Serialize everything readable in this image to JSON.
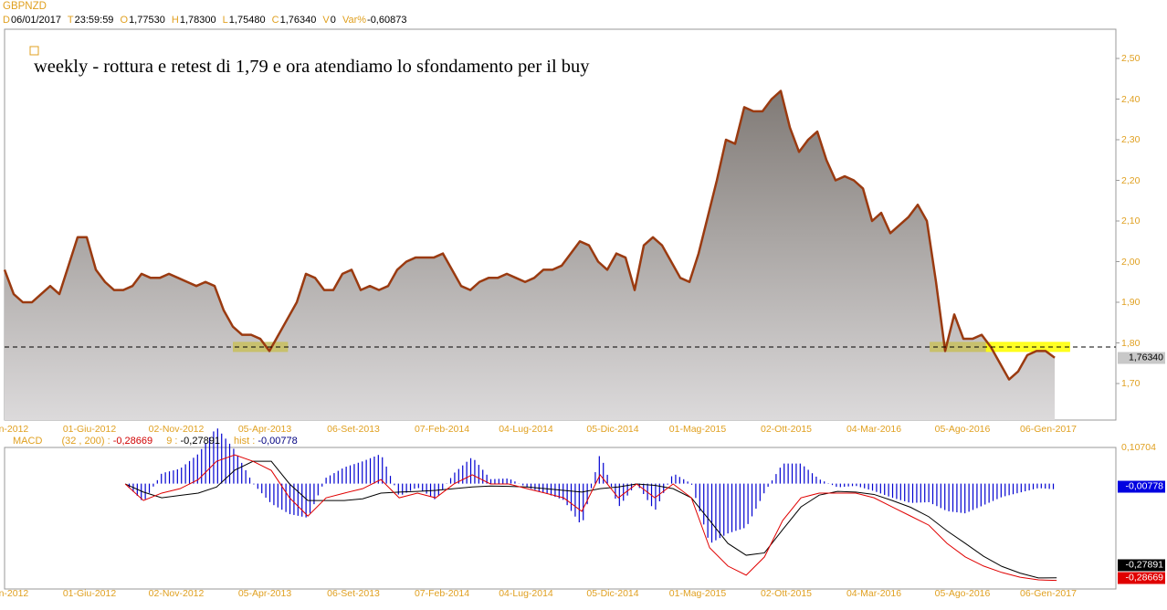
{
  "header": {
    "symbol": "GBPNZD",
    "date_key": "D",
    "date": "06/01/2017",
    "time_key": "T",
    "time": "23:59:59",
    "open_key": "O",
    "open": "1,77530",
    "high_key": "H",
    "high": "1,78300",
    "low_key": "L",
    "low": "1,75480",
    "close_key": "C",
    "close": "1,76340",
    "volume_key": "V",
    "volume": "0",
    "var_key": "Var%",
    "var": "-0,60873"
  },
  "annotation": "weekly - rottura e retest di 1,79 e ora atendiamo lo sfondamento per il buy",
  "x_labels": [
    "en-2012",
    "01-Giu-2012",
    "02-Nov-2012",
    "05-Apr-2013",
    "06-Set-2013",
    "07-Feb-2014",
    "04-Lug-2014",
    "05-Dic-2014",
    "01-Mag-2015",
    "02-Ott-2015",
    "04-Mar-2016",
    "05-Ago-2016",
    "06-Gen-2017"
  ],
  "macd_legend": {
    "name": "MACD",
    "params": "(32 , 200) :",
    "macd_value": "-0,28669",
    "signal_key": "9 :",
    "signal_value": "-0,27891",
    "hist_key": "hist :",
    "hist_value": "-0,00778"
  },
  "macd_scale": {
    "top": "0,10704",
    "hist_box": "-0,00778",
    "signal_box": "-0,27891",
    "macd_box": "-0,28669"
  },
  "colors": {
    "price_line": "#9a3a10",
    "level_line": "#000000",
    "highlight": "#ffff00",
    "macd": "#e00000",
    "signal": "#000000",
    "hist": "#0000d0",
    "axis_text": "#e0a020"
  },
  "chart_data": [
    {
      "type": "area",
      "title": "GBPNZD weekly",
      "y_ticks": [
        "2,50",
        "2,40",
        "2,30",
        "2,20",
        "2,10",
        "2,00",
        "1,90",
        "1,80",
        "1,70"
      ],
      "ylim": [
        1.61,
        2.57
      ],
      "x_range_years": [
        2012.0,
        2017.05
      ],
      "x_start_year": 2012.0,
      "x_step_years": 0.0439,
      "close": [
        1.98,
        1.92,
        1.9,
        1.9,
        1.92,
        1.94,
        1.92,
        1.99,
        2.06,
        2.06,
        1.98,
        1.95,
        1.93,
        1.93,
        1.94,
        1.97,
        1.96,
        1.96,
        1.97,
        1.96,
        1.95,
        1.94,
        1.95,
        1.94,
        1.88,
        1.84,
        1.82,
        1.82,
        1.81,
        1.78,
        1.82,
        1.86,
        1.9,
        1.97,
        1.96,
        1.93,
        1.93,
        1.97,
        1.98,
        1.93,
        1.94,
        1.93,
        1.94,
        1.98,
        2.0,
        2.01,
        2.01,
        2.01,
        2.02,
        1.98,
        1.94,
        1.93,
        1.95,
        1.96,
        1.96,
        1.97,
        1.96,
        1.95,
        1.96,
        1.98,
        1.98,
        1.99,
        2.02,
        2.05,
        2.04,
        2.0,
        1.98,
        2.02,
        2.01,
        1.93,
        2.04,
        2.06,
        2.04,
        2.0,
        1.96,
        1.95,
        2.02,
        2.11,
        2.2,
        2.3,
        2.29,
        2.38,
        2.37,
        2.37,
        2.4,
        2.42,
        2.33,
        2.27,
        2.3,
        2.32,
        2.25,
        2.2,
        2.21,
        2.2,
        2.18,
        2.1,
        2.12,
        2.07,
        2.09,
        2.11,
        2.14,
        2.1,
        1.95,
        1.78,
        1.87,
        1.81,
        1.81,
        1.82,
        1.79,
        1.75,
        1.71,
        1.73,
        1.77,
        1.78,
        1.78,
        1.7634
      ],
      "last_price": "1,76340",
      "level": 1.79,
      "level_label": "1,79",
      "highlight_zones": [
        {
          "from_year": 2013.1,
          "to_year": 2013.36,
          "low": 1.77,
          "high": 1.79,
          "color": "#c8c060"
        },
        {
          "from_year": 2016.45,
          "to_year": 2016.72,
          "low": 1.77,
          "high": 1.79,
          "color": "#c8c060"
        },
        {
          "from_year": 2016.72,
          "to_year": 2017.12,
          "low": 1.77,
          "high": 1.79,
          "color": "#ffff00"
        }
      ]
    },
    {
      "type": "line",
      "title": "MACD (32, 200) 9",
      "ylim": [
        -0.297,
        0.10704
      ],
      "x_start_year": 2012.58,
      "x_step_years": 0.0878,
      "series": [
        {
          "name": "MACD",
          "values": [
            -0.001,
            -0.05,
            -0.028,
            -0.015,
            0.012,
            0.066,
            0.085,
            0.066,
            0.039,
            -0.042,
            -0.096,
            -0.042,
            -0.028,
            -0.015,
            0.012,
            -0.042,
            -0.028,
            -0.042,
            -0.001,
            0.026,
            -0.001,
            -0.001,
            -0.015,
            -0.028,
            -0.042,
            -0.082,
            0.026,
            -0.042,
            -0.001,
            -0.042,
            -0.001,
            -0.042,
            -0.19,
            -0.244,
            -0.271,
            -0.217,
            -0.109,
            -0.042,
            -0.028,
            -0.028,
            -0.028,
            -0.042,
            -0.069,
            -0.096,
            -0.123,
            -0.177,
            -0.217,
            -0.244,
            -0.263,
            -0.277,
            -0.285,
            -0.2867
          ]
        },
        {
          "name": "Signal 9",
          "values": [
            -0.001,
            -0.025,
            -0.042,
            -0.035,
            -0.028,
            -0.01,
            0.04,
            0.066,
            0.066,
            -0.001,
            -0.05,
            -0.05,
            -0.05,
            -0.045,
            -0.028,
            -0.025,
            -0.023,
            -0.02,
            -0.015,
            -0.01,
            -0.007,
            -0.008,
            -0.01,
            -0.015,
            -0.02,
            -0.025,
            -0.015,
            -0.01,
            -0.001,
            -0.005,
            -0.015,
            -0.042,
            -0.109,
            -0.177,
            -0.212,
            -0.205,
            -0.136,
            -0.069,
            -0.034,
            -0.023,
            -0.025,
            -0.032,
            -0.05,
            -0.07,
            -0.098,
            -0.14,
            -0.177,
            -0.215,
            -0.245,
            -0.265,
            -0.279,
            -0.2789
          ]
        }
      ],
      "hist_last": -0.00778
    }
  ]
}
